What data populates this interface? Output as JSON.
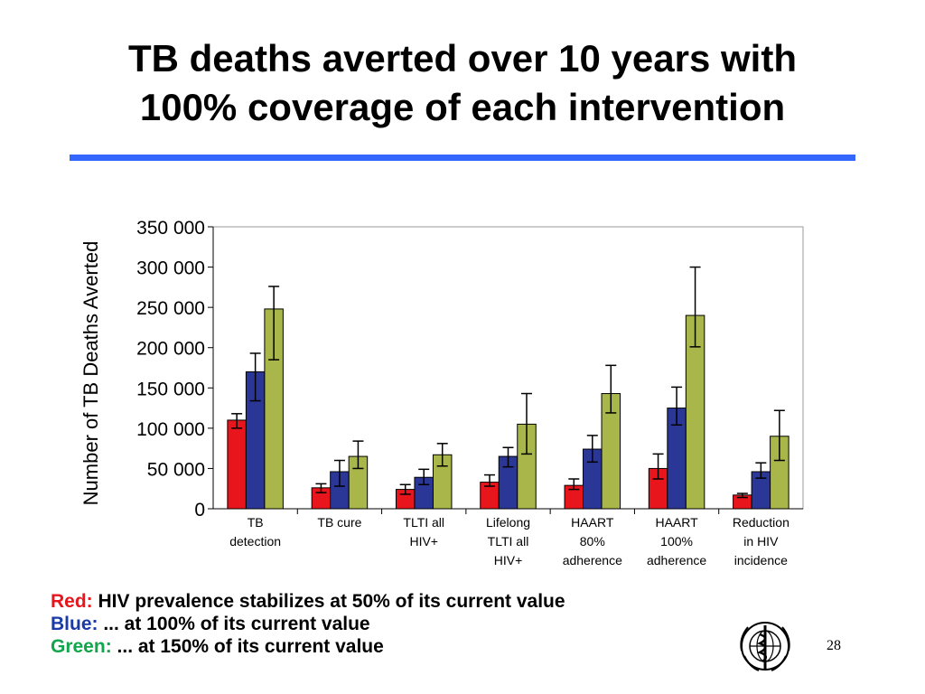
{
  "slide": {
    "title_line1": "TB deaths averted over 10 years with",
    "title_line2": "100% coverage of each intervention",
    "page_number": "28",
    "accent_color": "#3366ff"
  },
  "legend": [
    {
      "key": "Red:",
      "text": " HIV prevalence stabilizes at 50% of its current value",
      "color": "#e8161c"
    },
    {
      "key": "Blue:",
      "text": " ... at 100% of its current value",
      "color": "#1a3aa8"
    },
    {
      "key": "Green:",
      "text": " ... at 150% of its current value",
      "color": "#11a64c"
    }
  ],
  "logo": {
    "name": "who-emblem-icon"
  },
  "chart_data": {
    "type": "bar",
    "title": "",
    "xlabel": "",
    "ylabel": "Number of TB Deaths Averted",
    "ylim": [
      0,
      350000
    ],
    "yticks": [
      0,
      50000,
      100000,
      150000,
      200000,
      250000,
      300000,
      350000
    ],
    "ytick_labels": [
      "0",
      "50 000",
      "100 000",
      "150 000",
      "200 000",
      "250 000",
      "300 000",
      "350 000"
    ],
    "grid": false,
    "error_bars": true,
    "categories": [
      [
        "TB",
        "detection"
      ],
      [
        "TB cure"
      ],
      [
        "TLTI all",
        "HIV+"
      ],
      [
        "Lifelong",
        "TLTI all",
        "HIV+"
      ],
      [
        "HAART",
        "80%",
        "adherence"
      ],
      [
        "HAART",
        "100%",
        "adherence"
      ],
      [
        "Reduction",
        "in HIV",
        "incidence"
      ]
    ],
    "series": [
      {
        "color": "#e8161c",
        "values": [
          110000,
          26000,
          24000,
          33000,
          29000,
          50000,
          17000
        ],
        "err_low": [
          100000,
          20000,
          18000,
          28000,
          24000,
          37000,
          14000
        ],
        "err_high": [
          118000,
          31000,
          30000,
          42000,
          37000,
          68000,
          19000
        ]
      },
      {
        "color": "#2b3796",
        "values": [
          170000,
          46000,
          39000,
          65000,
          74000,
          125000,
          46000
        ],
        "err_low": [
          134000,
          28000,
          30000,
          52000,
          58000,
          104000,
          38000
        ],
        "err_high": [
          193000,
          60000,
          49000,
          76000,
          91000,
          151000,
          57000
        ]
      },
      {
        "color": "#a8b64a",
        "values": [
          248000,
          65000,
          67000,
          105000,
          143000,
          240000,
          90000
        ],
        "err_low": [
          185000,
          50000,
          53000,
          68000,
          119000,
          201000,
          60000
        ],
        "err_high": [
          276000,
          84000,
          81000,
          143000,
          178000,
          300000,
          122000
        ]
      }
    ]
  }
}
